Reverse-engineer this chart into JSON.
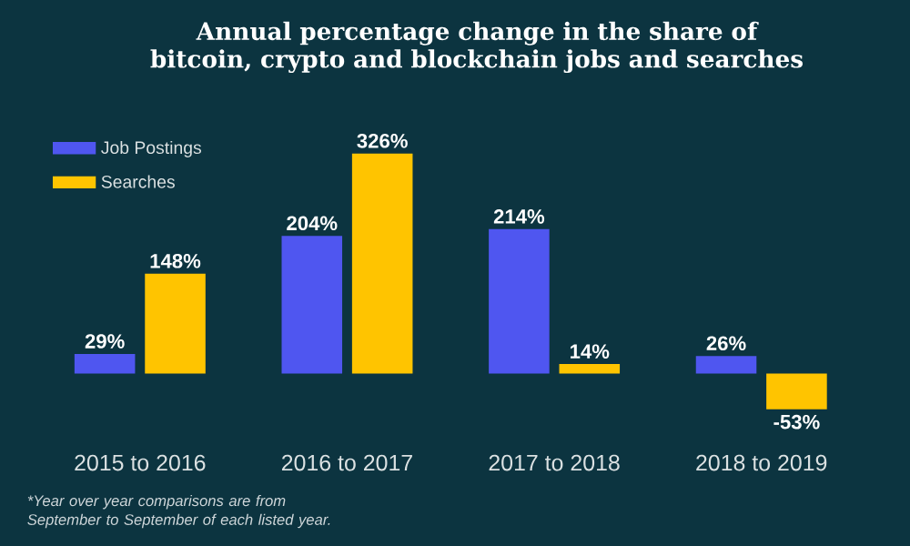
{
  "chart_data": {
    "type": "bar",
    "title": "Annual percentage change in the share of bitcoin, crypto and blockchain jobs and searches",
    "categories": [
      "2015 to 2016",
      "2016 to 2017",
      "2017 to 2018",
      "2018 to 2019"
    ],
    "series": [
      {
        "name": "Job Postings",
        "color": "#4f56f0",
        "values": [
          29,
          204,
          214,
          26
        ],
        "value_labels": [
          "29%",
          "204%",
          "214%",
          "26%"
        ]
      },
      {
        "name": "Searches",
        "color": "#ffc400",
        "values": [
          148,
          326,
          14,
          -53
        ],
        "value_labels": [
          "148%",
          "326%",
          "14%",
          "-53%"
        ]
      }
    ],
    "legend": "top left",
    "annotations": [
      "*Year over year comparisons are from September to September of each listed year."
    ]
  }
}
